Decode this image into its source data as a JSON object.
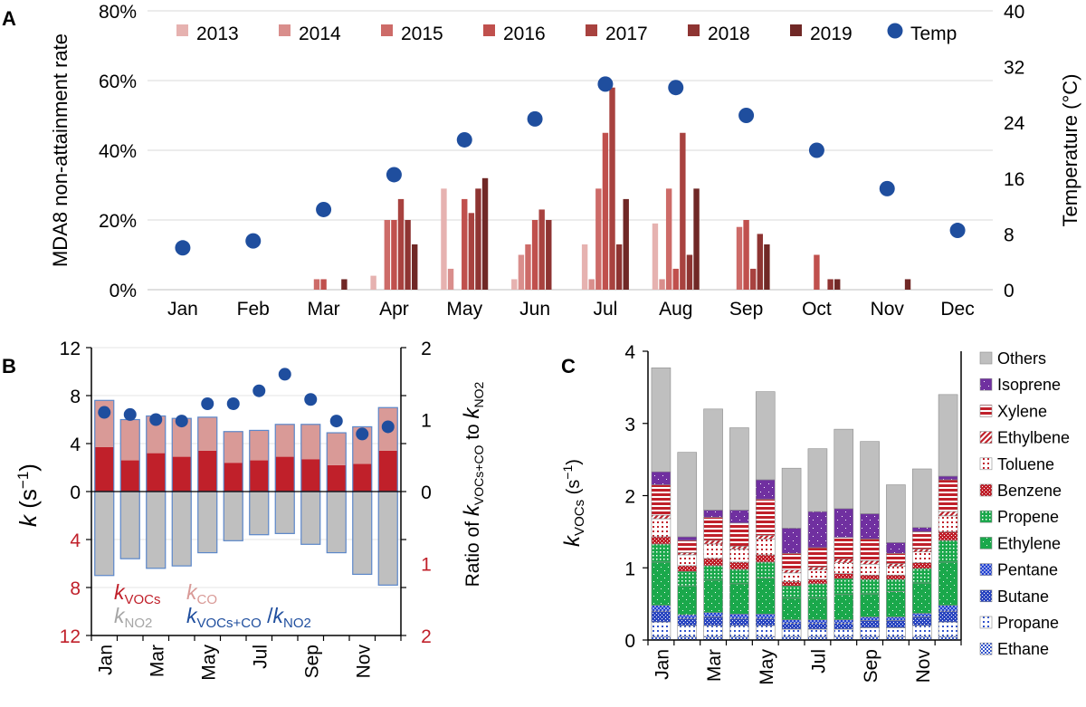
{
  "panel_labels": {
    "a": "A",
    "b": "B",
    "c": "C"
  },
  "chart_data": [
    {
      "id": "A",
      "type": "bar",
      "title": "",
      "ylabel": "MDA8 non-attainment rate",
      "y2label": "Temperature (°C)",
      "ylim": [
        0,
        80
      ],
      "y2lim": [
        0,
        40
      ],
      "yticks": [
        0,
        20,
        40,
        60,
        80
      ],
      "ytick_labels": [
        "0%",
        "20%",
        "40%",
        "60%",
        "80%"
      ],
      "y2ticks": [
        0,
        8,
        16,
        24,
        32,
        40
      ],
      "y2tick_labels": [
        "0",
        "8",
        "16",
        "24",
        "32",
        "40"
      ],
      "grid": true,
      "legend_position": "top",
      "categories": [
        "Jan",
        "Feb",
        "Mar",
        "Apr",
        "May",
        "Jun",
        "Jul",
        "Aug",
        "Sep",
        "Oct",
        "Nov",
        "Dec"
      ],
      "series": [
        {
          "name": "2013",
          "color": "#e6b2b0",
          "values": [
            0,
            0,
            0,
            4,
            29,
            3,
            13,
            19,
            0,
            0,
            0,
            0
          ]
        },
        {
          "name": "2014",
          "color": "#d98e8c",
          "values": [
            0,
            0,
            0,
            0,
            6,
            10,
            3,
            3,
            0,
            0,
            0,
            0
          ]
        },
        {
          "name": "2015",
          "color": "#cd6b68",
          "values": [
            0,
            0,
            3,
            20,
            0,
            13,
            29,
            29,
            18,
            0,
            0,
            0
          ]
        },
        {
          "name": "2016",
          "color": "#c0504d",
          "values": [
            0,
            0,
            3,
            20,
            26,
            20,
            45,
            6,
            20,
            10,
            0,
            0
          ]
        },
        {
          "name": "2017",
          "color": "#a8423f",
          "values": [
            0,
            0,
            0,
            26,
            22,
            23,
            58,
            45,
            6,
            0,
            0,
            0
          ]
        },
        {
          "name": "2018",
          "color": "#8e3432",
          "values": [
            0,
            0,
            0,
            20,
            29,
            20,
            13,
            10,
            16,
            3,
            0,
            0
          ]
        },
        {
          "name": "2019",
          "color": "#702826",
          "values": [
            0,
            0,
            3,
            13,
            32,
            0,
            26,
            29,
            13,
            3,
            3,
            0
          ]
        }
      ],
      "line_series": {
        "name": "Temp",
        "color": "#1f4e9e",
        "axis": "right",
        "values": [
          6,
          7,
          11.5,
          16.5,
          21.5,
          24.5,
          29.5,
          29,
          25,
          20,
          14.5,
          8.5
        ]
      }
    },
    {
      "id": "B",
      "type": "bar",
      "title": "",
      "ylabel": "k (s⁻¹)",
      "ylabel_main": "k",
      "ylabel_unit": "(s",
      "ylabel_sup": "−1",
      "y2label": "Ratio of kVOCs+CO to kNO2",
      "ylim": [
        -12,
        12
      ],
      "y2lim": [
        -2,
        2
      ],
      "yticks": [
        12,
        8,
        4,
        0,
        -4,
        -8,
        -12
      ],
      "ytick_labels_top": [
        "12",
        "8",
        "4",
        "0"
      ],
      "ytick_labels_bottom": [
        "4",
        "8",
        "12"
      ],
      "y2tick_labels_top": [
        "2",
        "1",
        "0"
      ],
      "y2tick_labels_bottom": [
        "1",
        "2"
      ],
      "categories": [
        "Jan",
        "Feb",
        "Mar",
        "Apr",
        "May",
        "Jun",
        "Jul",
        "Aug",
        "Sep",
        "Oct",
        "Nov",
        "Dec"
      ],
      "xtick_labels": [
        "Jan",
        "Mar",
        "May",
        "Jul",
        "Sep",
        "Nov"
      ],
      "k_vocs": [
        3.7,
        2.6,
        3.2,
        2.9,
        3.4,
        2.4,
        2.6,
        2.9,
        2.7,
        2.2,
        2.3,
        3.4
      ],
      "k_co": [
        3.9,
        3.4,
        3.1,
        3.2,
        2.8,
        2.6,
        2.5,
        2.7,
        2.9,
        2.7,
        3.1,
        3.6
      ],
      "k_no2": [
        7.0,
        5.6,
        6.4,
        6.2,
        5.1,
        4.1,
        3.6,
        3.5,
        4.4,
        5.1,
        6.9,
        7.8
      ],
      "ratio": [
        1.1,
        1.07,
        1.0,
        0.98,
        1.22,
        1.22,
        1.4,
        1.63,
        1.28,
        0.98,
        0.8,
        0.9
      ],
      "colors": {
        "k_vocs": "#c0202a",
        "k_co": "#d99a97",
        "k_no2": "#bfbfbf",
        "ratio": "#1f4e9e",
        "box": "#5b87c9"
      },
      "legend": {
        "k_vocs": {
          "main": "k",
          "sub": "VOCs"
        },
        "k_co": {
          "main": "k",
          "sub": "CO"
        },
        "k_no2": {
          "main": "k",
          "sub": "NO2"
        },
        "ratio": {
          "main": "k",
          "sub": "VOCs+CO",
          "mid": " /",
          "main2": "k",
          "sub2": "NO2"
        }
      },
      "y2label_parts": {
        "pre": "Ratio of ",
        "k1": "k",
        "s1": "VOCs+CO",
        "mid": "  to  ",
        "k2": "k",
        "s2": "NO2"
      }
    },
    {
      "id": "C",
      "type": "bar",
      "title": "",
      "ylabel": "kVOCs (s⁻¹)",
      "ylabel_main": "k",
      "ylabel_sub": "VOCs",
      "ylabel_unit": " (s",
      "ylabel_sup": "−1",
      "ylim": [
        0,
        4
      ],
      "yticks": [
        0,
        1,
        2,
        3,
        4
      ],
      "ytick_labels": [
        "0",
        "1",
        "2",
        "3",
        "4"
      ],
      "categories": [
        "Jan",
        "Feb",
        "Mar",
        "Apr",
        "May",
        "Jun",
        "Jul",
        "Aug",
        "Sep",
        "Oct",
        "Nov",
        "Dec"
      ],
      "xtick_labels": [
        "Jan",
        "Mar",
        "May",
        "Jul",
        "Sep",
        "Nov"
      ],
      "legend_position": "right",
      "series": [
        {
          "name": "Ethane",
          "values": [
            0.05,
            0.05,
            0.05,
            0.05,
            0.05,
            0.05,
            0.05,
            0.05,
            0.05,
            0.05,
            0.05,
            0.05
          ]
        },
        {
          "name": "Propane",
          "values": [
            0.2,
            0.15,
            0.15,
            0.15,
            0.15,
            0.1,
            0.1,
            0.1,
            0.12,
            0.12,
            0.15,
            0.2
          ]
        },
        {
          "name": "Butane",
          "values": [
            0.15,
            0.1,
            0.12,
            0.1,
            0.1,
            0.08,
            0.08,
            0.08,
            0.1,
            0.1,
            0.12,
            0.15
          ]
        },
        {
          "name": "Pentane",
          "values": [
            0.08,
            0.05,
            0.06,
            0.06,
            0.06,
            0.05,
            0.05,
            0.05,
            0.05,
            0.05,
            0.05,
            0.08
          ]
        },
        {
          "name": "Ethylene",
          "values": [
            0.6,
            0.4,
            0.45,
            0.42,
            0.5,
            0.3,
            0.3,
            0.35,
            0.32,
            0.35,
            0.42,
            0.6
          ]
        },
        {
          "name": "Propene",
          "values": [
            0.25,
            0.2,
            0.2,
            0.2,
            0.22,
            0.17,
            0.2,
            0.22,
            0.2,
            0.17,
            0.2,
            0.3
          ]
        },
        {
          "name": "Benzene",
          "values": [
            0.1,
            0.08,
            0.1,
            0.1,
            0.1,
            0.06,
            0.06,
            0.07,
            0.06,
            0.06,
            0.08,
            0.12
          ]
        },
        {
          "name": "Toluene",
          "values": [
            0.25,
            0.15,
            0.2,
            0.18,
            0.22,
            0.12,
            0.13,
            0.15,
            0.15,
            0.12,
            0.15,
            0.22
          ]
        },
        {
          "name": "Ethylbene",
          "values": [
            0.05,
            0.03,
            0.05,
            0.04,
            0.05,
            0.04,
            0.04,
            0.05,
            0.05,
            0.04,
            0.04,
            0.06
          ]
        },
        {
          "name": "Xylene",
          "values": [
            0.42,
            0.17,
            0.32,
            0.32,
            0.5,
            0.23,
            0.27,
            0.3,
            0.3,
            0.14,
            0.24,
            0.44
          ]
        },
        {
          "name": "Isoprene",
          "values": [
            0.18,
            0.05,
            0.1,
            0.18,
            0.27,
            0.35,
            0.5,
            0.4,
            0.35,
            0.15,
            0.06,
            0.05
          ]
        },
        {
          "name": "Others",
          "values": [
            1.44,
            1.17,
            1.4,
            1.14,
            1.22,
            0.83,
            0.87,
            1.1,
            1.0,
            0.8,
            0.81,
            1.13
          ]
        }
      ]
    }
  ]
}
